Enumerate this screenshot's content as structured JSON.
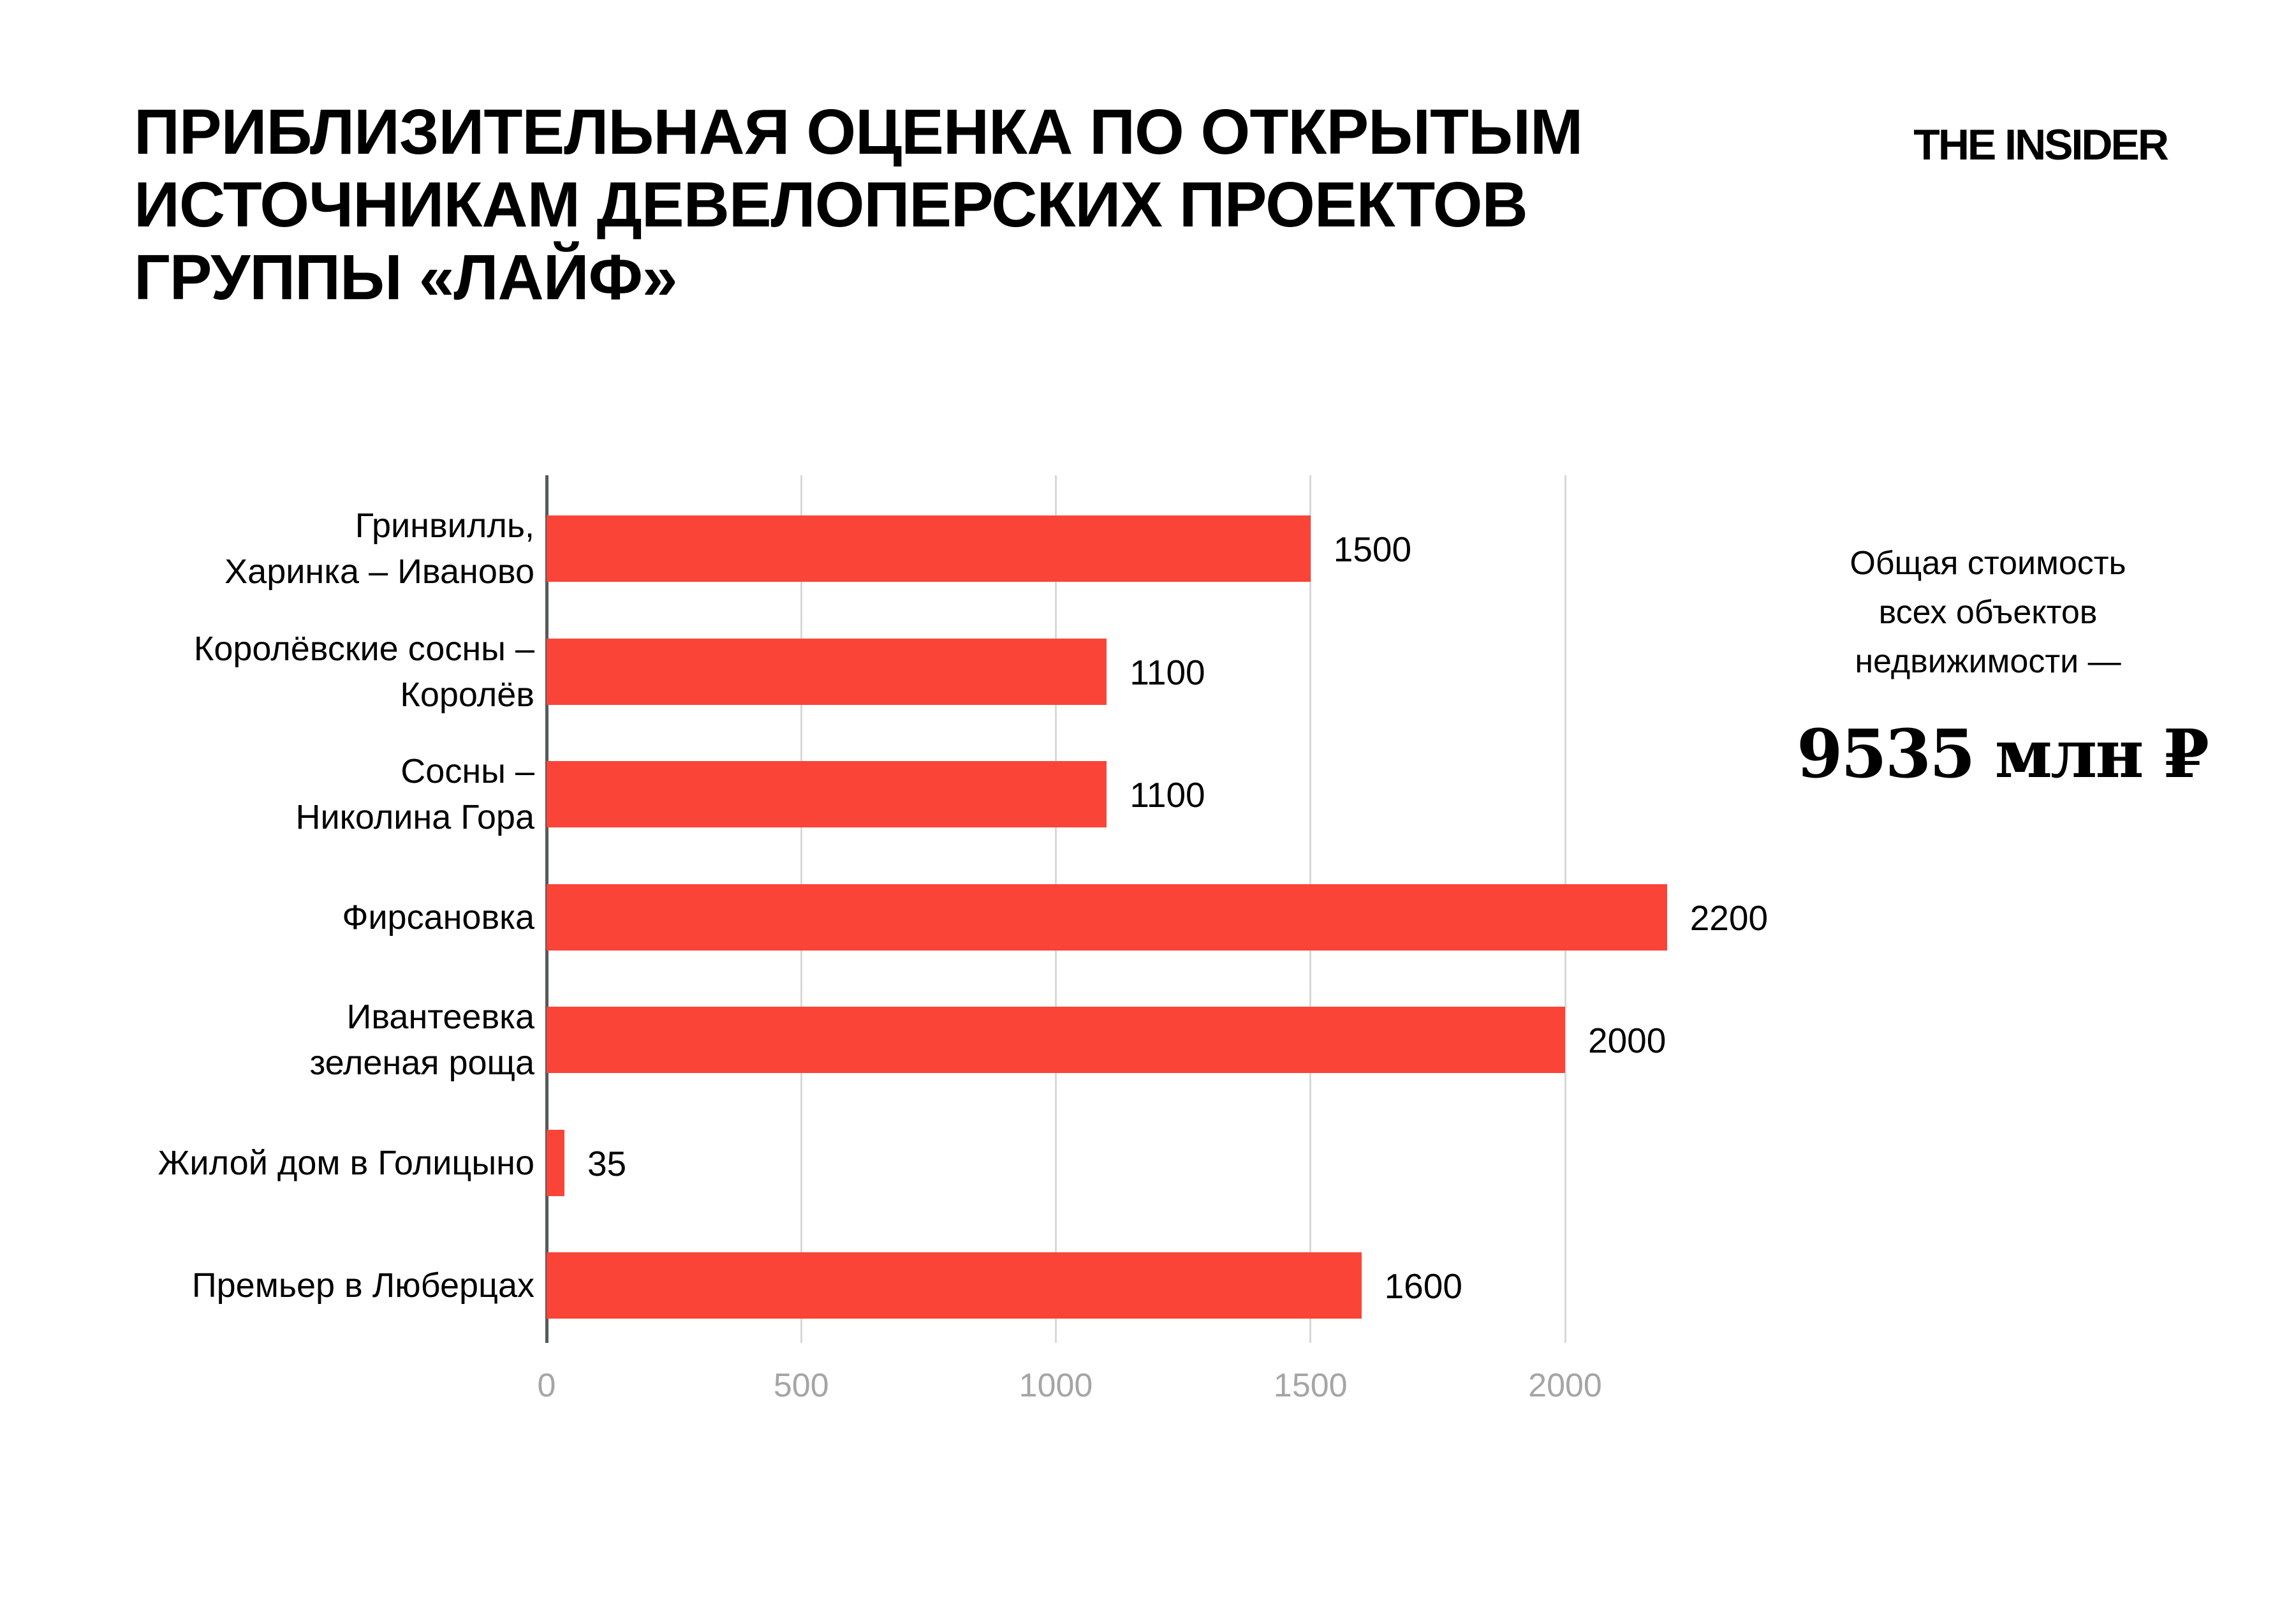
{
  "header": {
    "title": "ПРИБЛИЗИТЕЛЬНАЯ ОЦЕНКА ПО ОТКРЫТЫМ\nИСТОЧНИКАМ ДЕВЕЛОПЕРСКИХ ПРОЕКТОВ\nГРУППЫ «ЛАЙФ»",
    "logo": "THE INSIDER"
  },
  "chart_data": {
    "type": "bar",
    "orientation": "horizontal",
    "title": "",
    "categories": [
      "Гринвилль,\nХаринка – Иваново",
      "Королёвские сосны –\nКоролёв",
      "Сосны –\nНиколина Гора",
      "Фирсановка",
      "Ивантеевка\nзеленая роща",
      "Жилой дом в Голицыно",
      "Премьер в Люберцах"
    ],
    "values": [
      1500,
      1100,
      1100,
      2200,
      2000,
      35,
      1600
    ],
    "value_labels": [
      "1500",
      "1100",
      "1100",
      "2200",
      "2000",
      "35",
      "1600"
    ],
    "x_ticks": [
      0,
      500,
      1000,
      1500,
      2000
    ],
    "xlim": [
      0,
      2200
    ],
    "grid": "vertical-only",
    "bar_color": "#fa4438",
    "axis_color": "#58595b",
    "gridline_color": "#d8d8d8",
    "tick_label_color": "#a5a5a5"
  },
  "annotation": {
    "label": "Общая стоимость\nвсех объектов\nнедвижимости —",
    "value": "9535 млн ₽"
  }
}
